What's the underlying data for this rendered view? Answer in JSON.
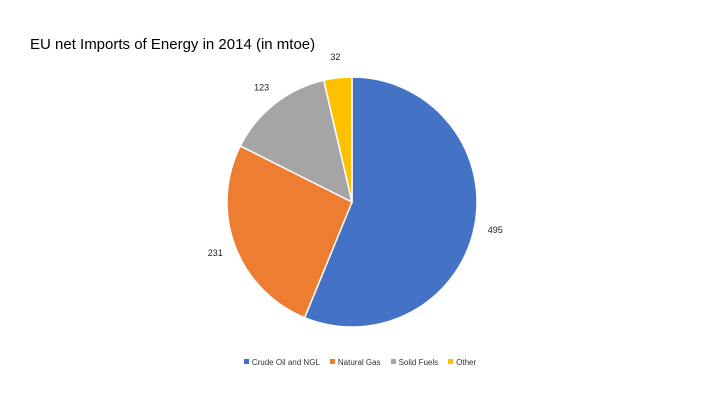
{
  "chart_data": {
    "type": "pie",
    "title": "EU net Imports of Energy in 2014 (in mtoe)",
    "categories": [
      "Crude Oil and NGL",
      "Natural Gas",
      "Solid Fuels",
      "Other"
    ],
    "values": [
      495,
      231,
      123,
      32
    ],
    "colors": [
      "#4472C4",
      "#ED7D31",
      "#A5A5A5",
      "#FFC000"
    ],
    "start_angle_deg": 0,
    "direction": "clockwise",
    "legend": "bottom",
    "data_labels": "outside"
  }
}
